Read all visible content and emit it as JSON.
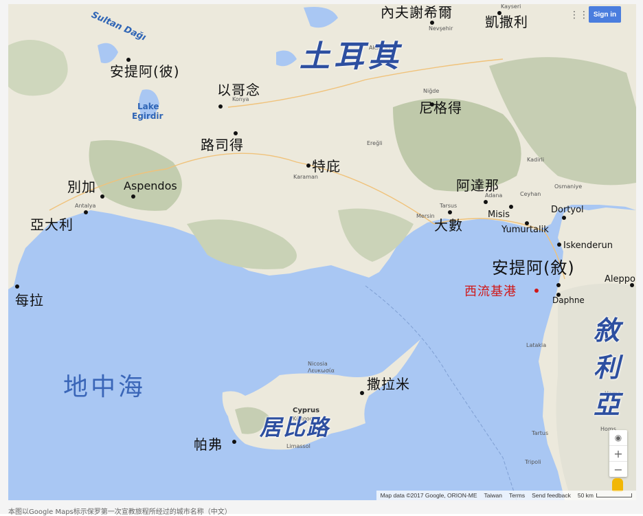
{
  "ui": {
    "sign_in": "Sign in",
    "zoom_in": "+",
    "zoom_out": "−",
    "compass": "◉",
    "apps_icon": "⋮⋮⋮"
  },
  "attribution": {
    "map_data": "Map data ©2017 Google, ORION-ME",
    "region": "Taiwan",
    "terms": "Terms",
    "feedback": "Send feedback",
    "scale": "50 km"
  },
  "caption": "本图以Google Maps标示保罗第一次宣教旅程所经过的城市名称（中文）",
  "colors": {
    "sea": "#a9c7f3",
    "land": "#ece9dc",
    "mountain": "#b9c4a6",
    "red_label": "#d01818",
    "big_label": "#2d4fa0"
  },
  "regions": {
    "turkey": "土耳其",
    "syria": "敘利亞",
    "cyprus": "居比路",
    "sea": "地中海"
  },
  "places": {
    "antioch_pisidia": "安提阿(彼)",
    "iconium": "以哥念",
    "lystra": "路司得",
    "derbe": "特庇",
    "perga": "別加",
    "aspendos": "Aspendos",
    "attalia": "亞大利",
    "myra": "每拉",
    "nevsehir": "內夫謝希爾",
    "kayseri": "凱撒利",
    "nigde": "尼格得",
    "adana": "阿達那",
    "mersin": "大數",
    "misis": "Misis",
    "yumurtalik": "Yumurtalik",
    "dortyol": "Dortyol",
    "iskenderun": "Iskenderun",
    "antioch_syria": "安提阿(敘)",
    "seleucia": "西流基港",
    "daphne": "Daphne",
    "aleppo": "Aleppo",
    "salamis": "撒拉米",
    "paphos": "帕弗"
  },
  "base_labels": {
    "sultan_dagi": "Sultan Dağı",
    "lake_egirdir_1": "Lake",
    "lake_egirdir_2": "Egirdir",
    "konya": "Konya",
    "karaman": "Karaman",
    "antalya": "Antalya",
    "adana_en": "Adana",
    "tarsus": "Tarsus",
    "mersin_en": "Mersin",
    "nicosia": "Nicosia",
    "nicosia_gr": "Λευκωσία",
    "cyprus_en": "Cyprus",
    "kypros": "Κύπρος",
    "limassol": "Limassol",
    "kayseri_en": "Kayseri",
    "nevsehir_en": "Nevşehir",
    "aksaray": "Aksaray",
    "nigde_en": "Niğde",
    "hama": "Hama",
    "homs": "Homs",
    "tartus": "Tartus",
    "latakia": "Latakia",
    "tripoli": "Tripoli",
    "kadirli": "Kadirli",
    "osmaniye": "Osmaniye",
    "ceyhan": "Ceyhan",
    "eregli": "Ereğli"
  }
}
